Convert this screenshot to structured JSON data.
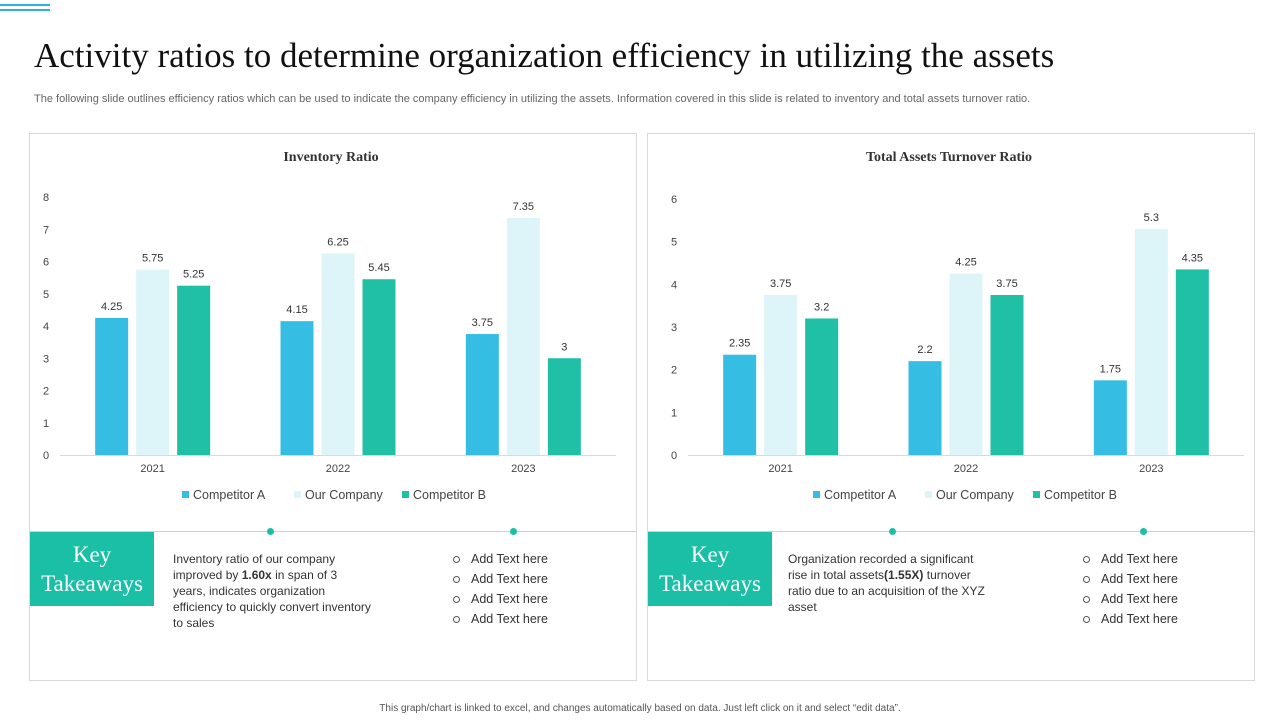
{
  "header": {
    "title": "Activity ratios to determine organization efficiency in utilizing the assets",
    "subtitle": "The following slide outlines efficiency ratios which can be used to indicate the company efficiency in utilizing the assets. Information covered in this slide is related to inventory and total assets turnover ratio."
  },
  "colors": {
    "competitor_a": "#35bde3",
    "our_company": "#ddf4f8",
    "competitor_b": "#1fc0a6",
    "accent": "#1bbfa6"
  },
  "chart_data": [
    {
      "type": "bar",
      "title": "Inventory Ratio",
      "categories": [
        "2021",
        "2022",
        "2023"
      ],
      "series": [
        {
          "name": "Competitor A",
          "values": [
            4.25,
            4.15,
            3.75
          ]
        },
        {
          "name": "Our Company",
          "values": [
            5.75,
            6.25,
            7.35
          ]
        },
        {
          "name": "Competitor B",
          "values": [
            5.25,
            5.45,
            3
          ]
        }
      ],
      "ylim": [
        0,
        8
      ],
      "yticks": [
        0,
        1,
        2,
        3,
        4,
        5,
        6,
        7,
        8
      ],
      "xlabel": "",
      "ylabel": "",
      "legend": "bottom"
    },
    {
      "type": "bar",
      "title": "Total Assets Turnover Ratio",
      "categories": [
        "2021",
        "2022",
        "2023"
      ],
      "series": [
        {
          "name": "Competitor A",
          "values": [
            2.35,
            2.2,
            1.75
          ]
        },
        {
          "name": "Our Company",
          "values": [
            3.75,
            4.25,
            5.3
          ]
        },
        {
          "name": "Competitor B",
          "values": [
            3.2,
            3.75,
            4.35
          ]
        }
      ],
      "ylim": [
        0,
        6
      ],
      "yticks": [
        0,
        1,
        2,
        3,
        4,
        5,
        6
      ],
      "xlabel": "",
      "ylabel": "",
      "legend": "bottom"
    }
  ],
  "takeaways": [
    {
      "heading_line1": "Key",
      "heading_line2": "Takeaways",
      "text_prefix": "Inventory ratio of our company improved by ",
      "text_bold": "1.60x",
      "text_suffix": " in span of 3 years, indicates organization efficiency to quickly convert inventory to sales",
      "bullets": [
        "Add Text here",
        "Add Text here",
        "Add Text here",
        "Add Text here"
      ]
    },
    {
      "heading_line1": "Key",
      "heading_line2": "Takeaways",
      "text_prefix": "Organization recorded a significant rise in total assets",
      "text_bold": "(1.55X)",
      "text_suffix": " turnover ratio due to an acquisition of the XYZ asset",
      "bullets": [
        "Add Text here",
        "Add Text here",
        "Add Text here",
        "Add Text here"
      ]
    }
  ],
  "footer": "This graph/chart is linked to excel, and changes automatically based on data. Just left click on it and select “edit data”."
}
